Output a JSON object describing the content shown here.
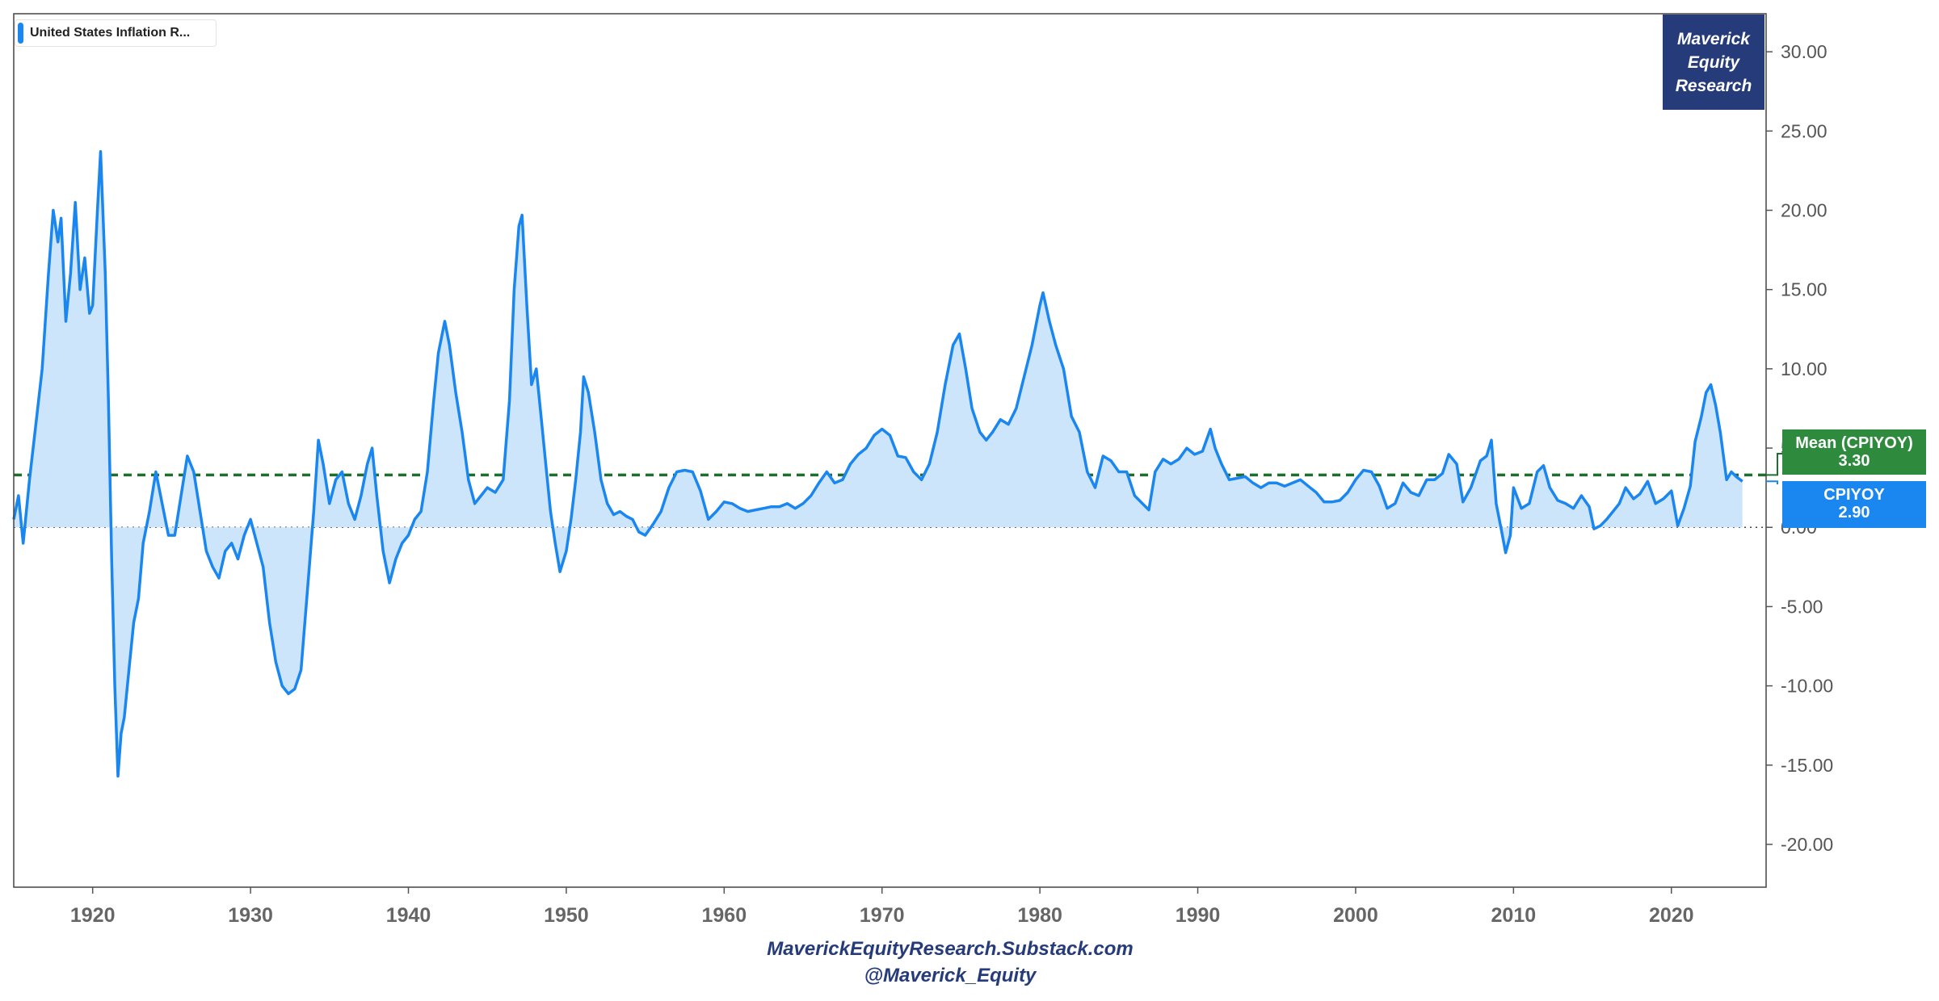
{
  "legend": {
    "label": "United States Inflation R..."
  },
  "brand": {
    "line1": "Maverick",
    "line2": "Equity",
    "line3": "Research"
  },
  "tags": {
    "mean_label": "Mean (CPIYOY)",
    "mean_value": "3.30",
    "current_label": "CPIYOY",
    "current_value": "2.90"
  },
  "footer": {
    "line1": "MaverickEquityResearch.Substack.com",
    "line2": "@Maverick_Equity"
  },
  "colors": {
    "line": "#1a86f0",
    "fill": "#cde5fb",
    "mean_line": "#1f6e2e",
    "brand": "#253b7a"
  },
  "chart_data": {
    "type": "area",
    "title": "United States Inflation R...",
    "xlabel": "",
    "ylabel": "",
    "xlim": [
      1915,
      2026
    ],
    "ylim": [
      -22.7,
      32.4
    ],
    "x_ticks": [
      "1920",
      "1930",
      "1940",
      "1950",
      "1960",
      "1970",
      "1980",
      "1990",
      "2000",
      "2010",
      "2020"
    ],
    "y_ticks": [
      "30.00",
      "25.00",
      "20.00",
      "15.00",
      "10.00",
      "5.00",
      "0.00",
      "-5.00",
      "-10.00",
      "-15.00",
      "-20.00"
    ],
    "mean": 3.3,
    "last_value": 2.9,
    "series": [
      {
        "points": [
          [
            1915.0,
            0.5
          ],
          [
            1915.3,
            2.0
          ],
          [
            1915.6,
            -1.0
          ],
          [
            1916.0,
            3.0
          ],
          [
            1916.4,
            6.5
          ],
          [
            1916.8,
            10.0
          ],
          [
            1917.2,
            16.0
          ],
          [
            1917.5,
            20.0
          ],
          [
            1917.8,
            18.0
          ],
          [
            1918.0,
            19.5
          ],
          [
            1918.3,
            13.0
          ],
          [
            1918.6,
            16.0
          ],
          [
            1918.9,
            20.5
          ],
          [
            1919.2,
            15.0
          ],
          [
            1919.5,
            17.0
          ],
          [
            1919.8,
            13.5
          ],
          [
            1920.0,
            14.0
          ],
          [
            1920.3,
            20.0
          ],
          [
            1920.5,
            23.7
          ],
          [
            1920.8,
            16.0
          ],
          [
            1921.0,
            8.0
          ],
          [
            1921.2,
            -2.0
          ],
          [
            1921.4,
            -10.0
          ],
          [
            1921.6,
            -15.7
          ],
          [
            1921.8,
            -13.0
          ],
          [
            1922.0,
            -12.0
          ],
          [
            1922.3,
            -9.0
          ],
          [
            1922.6,
            -6.0
          ],
          [
            1922.9,
            -4.5
          ],
          [
            1923.2,
            -1.0
          ],
          [
            1923.6,
            1.0
          ],
          [
            1924.0,
            3.5
          ],
          [
            1924.4,
            1.5
          ],
          [
            1924.8,
            -0.5
          ],
          [
            1925.2,
            -0.5
          ],
          [
            1925.6,
            2.0
          ],
          [
            1926.0,
            4.5
          ],
          [
            1926.4,
            3.5
          ],
          [
            1926.8,
            1.0
          ],
          [
            1927.2,
            -1.5
          ],
          [
            1927.6,
            -2.5
          ],
          [
            1928.0,
            -3.2
          ],
          [
            1928.4,
            -1.5
          ],
          [
            1928.8,
            -1.0
          ],
          [
            1929.2,
            -2.0
          ],
          [
            1929.6,
            -0.5
          ],
          [
            1930.0,
            0.5
          ],
          [
            1930.4,
            -1.0
          ],
          [
            1930.8,
            -2.5
          ],
          [
            1931.2,
            -6.0
          ],
          [
            1931.6,
            -8.5
          ],
          [
            1932.0,
            -10.0
          ],
          [
            1932.4,
            -10.5
          ],
          [
            1932.8,
            -10.2
          ],
          [
            1933.2,
            -9.0
          ],
          [
            1933.6,
            -4.0
          ],
          [
            1934.0,
            1.0
          ],
          [
            1934.3,
            5.5
          ],
          [
            1934.6,
            4.0
          ],
          [
            1935.0,
            1.5
          ],
          [
            1935.4,
            3.0
          ],
          [
            1935.8,
            3.5
          ],
          [
            1936.2,
            1.5
          ],
          [
            1936.6,
            0.5
          ],
          [
            1937.0,
            2.0
          ],
          [
            1937.4,
            4.0
          ],
          [
            1937.7,
            5.0
          ],
          [
            1938.0,
            2.0
          ],
          [
            1938.4,
            -1.5
          ],
          [
            1938.8,
            -3.5
          ],
          [
            1939.2,
            -2.0
          ],
          [
            1939.6,
            -1.0
          ],
          [
            1940.0,
            -0.5
          ],
          [
            1940.4,
            0.5
          ],
          [
            1940.8,
            1.0
          ],
          [
            1941.2,
            3.5
          ],
          [
            1941.6,
            8.0
          ],
          [
            1941.9,
            11.0
          ],
          [
            1942.3,
            13.0
          ],
          [
            1942.6,
            11.5
          ],
          [
            1943.0,
            8.5
          ],
          [
            1943.4,
            6.0
          ],
          [
            1943.8,
            3.0
          ],
          [
            1944.2,
            1.5
          ],
          [
            1944.6,
            2.0
          ],
          [
            1945.0,
            2.5
          ],
          [
            1945.5,
            2.2
          ],
          [
            1946.0,
            3.0
          ],
          [
            1946.4,
            8.0
          ],
          [
            1946.7,
            15.0
          ],
          [
            1947.0,
            19.0
          ],
          [
            1947.2,
            19.7
          ],
          [
            1947.5,
            14.0
          ],
          [
            1947.8,
            9.0
          ],
          [
            1948.1,
            10.0
          ],
          [
            1948.4,
            7.0
          ],
          [
            1948.7,
            4.0
          ],
          [
            1949.0,
            1.0
          ],
          [
            1949.3,
            -1.0
          ],
          [
            1949.6,
            -2.8
          ],
          [
            1950.0,
            -1.5
          ],
          [
            1950.3,
            0.5
          ],
          [
            1950.6,
            3.0
          ],
          [
            1950.9,
            6.0
          ],
          [
            1951.1,
            9.5
          ],
          [
            1951.4,
            8.5
          ],
          [
            1951.8,
            6.0
          ],
          [
            1952.2,
            3.0
          ],
          [
            1952.6,
            1.5
          ],
          [
            1953.0,
            0.8
          ],
          [
            1953.4,
            1.0
          ],
          [
            1953.8,
            0.7
          ],
          [
            1954.2,
            0.5
          ],
          [
            1954.6,
            -0.3
          ],
          [
            1955.0,
            -0.5
          ],
          [
            1955.5,
            0.2
          ],
          [
            1956.0,
            1.0
          ],
          [
            1956.5,
            2.5
          ],
          [
            1957.0,
            3.5
          ],
          [
            1957.5,
            3.6
          ],
          [
            1958.0,
            3.5
          ],
          [
            1958.5,
            2.3
          ],
          [
            1959.0,
            0.5
          ],
          [
            1959.5,
            1.0
          ],
          [
            1960.0,
            1.6
          ],
          [
            1960.5,
            1.5
          ],
          [
            1961.0,
            1.2
          ],
          [
            1961.5,
            1.0
          ],
          [
            1962.0,
            1.1
          ],
          [
            1962.5,
            1.2
          ],
          [
            1963.0,
            1.3
          ],
          [
            1963.5,
            1.3
          ],
          [
            1964.0,
            1.5
          ],
          [
            1964.5,
            1.2
          ],
          [
            1965.0,
            1.5
          ],
          [
            1965.5,
            2.0
          ],
          [
            1966.0,
            2.8
          ],
          [
            1966.5,
            3.5
          ],
          [
            1967.0,
            2.8
          ],
          [
            1967.5,
            3.0
          ],
          [
            1968.0,
            4.0
          ],
          [
            1968.5,
            4.6
          ],
          [
            1969.0,
            5.0
          ],
          [
            1969.5,
            5.8
          ],
          [
            1970.0,
            6.2
          ],
          [
            1970.5,
            5.8
          ],
          [
            1971.0,
            4.5
          ],
          [
            1971.5,
            4.4
          ],
          [
            1972.0,
            3.5
          ],
          [
            1972.5,
            3.0
          ],
          [
            1973.0,
            4.0
          ],
          [
            1973.5,
            6.0
          ],
          [
            1974.0,
            9.0
          ],
          [
            1974.5,
            11.5
          ],
          [
            1974.9,
            12.2
          ],
          [
            1975.3,
            10.0
          ],
          [
            1975.7,
            7.5
          ],
          [
            1976.2,
            6.0
          ],
          [
            1976.6,
            5.5
          ],
          [
            1977.0,
            6.0
          ],
          [
            1977.5,
            6.8
          ],
          [
            1978.0,
            6.5
          ],
          [
            1978.5,
            7.5
          ],
          [
            1979.0,
            9.5
          ],
          [
            1979.5,
            11.5
          ],
          [
            1980.0,
            14.0
          ],
          [
            1980.2,
            14.8
          ],
          [
            1980.6,
            13.0
          ],
          [
            1981.0,
            11.5
          ],
          [
            1981.5,
            10.0
          ],
          [
            1982.0,
            7.0
          ],
          [
            1982.5,
            6.0
          ],
          [
            1983.0,
            3.5
          ],
          [
            1983.5,
            2.5
          ],
          [
            1984.0,
            4.5
          ],
          [
            1984.5,
            4.2
          ],
          [
            1985.0,
            3.5
          ],
          [
            1985.5,
            3.5
          ],
          [
            1986.0,
            2.0
          ],
          [
            1986.5,
            1.5
          ],
          [
            1986.9,
            1.1
          ],
          [
            1987.3,
            3.5
          ],
          [
            1987.8,
            4.3
          ],
          [
            1988.3,
            4.0
          ],
          [
            1988.8,
            4.3
          ],
          [
            1989.3,
            5.0
          ],
          [
            1989.8,
            4.6
          ],
          [
            1990.3,
            4.8
          ],
          [
            1990.8,
            6.2
          ],
          [
            1991.1,
            5.0
          ],
          [
            1991.5,
            4.0
          ],
          [
            1992.0,
            3.0
          ],
          [
            1992.5,
            3.1
          ],
          [
            1993.0,
            3.2
          ],
          [
            1993.5,
            2.8
          ],
          [
            1994.0,
            2.5
          ],
          [
            1994.5,
            2.8
          ],
          [
            1995.0,
            2.8
          ],
          [
            1995.5,
            2.6
          ],
          [
            1996.0,
            2.8
          ],
          [
            1996.5,
            3.0
          ],
          [
            1997.0,
            2.6
          ],
          [
            1997.5,
            2.2
          ],
          [
            1998.0,
            1.6
          ],
          [
            1998.5,
            1.6
          ],
          [
            1999.0,
            1.7
          ],
          [
            1999.5,
            2.2
          ],
          [
            2000.0,
            3.0
          ],
          [
            2000.5,
            3.6
          ],
          [
            2001.0,
            3.5
          ],
          [
            2001.5,
            2.6
          ],
          [
            2002.0,
            1.2
          ],
          [
            2002.5,
            1.5
          ],
          [
            2003.0,
            2.8
          ],
          [
            2003.5,
            2.2
          ],
          [
            2004.0,
            2.0
          ],
          [
            2004.5,
            3.0
          ],
          [
            2005.0,
            3.0
          ],
          [
            2005.5,
            3.4
          ],
          [
            2005.9,
            4.6
          ],
          [
            2006.4,
            4.0
          ],
          [
            2006.8,
            1.6
          ],
          [
            2007.3,
            2.5
          ],
          [
            2007.9,
            4.2
          ],
          [
            2008.3,
            4.5
          ],
          [
            2008.6,
            5.5
          ],
          [
            2008.9,
            1.5
          ],
          [
            2009.2,
            0.0
          ],
          [
            2009.5,
            -1.6
          ],
          [
            2009.8,
            -0.5
          ],
          [
            2010.0,
            2.5
          ],
          [
            2010.5,
            1.2
          ],
          [
            2011.0,
            1.5
          ],
          [
            2011.5,
            3.5
          ],
          [
            2011.9,
            3.9
          ],
          [
            2012.3,
            2.5
          ],
          [
            2012.8,
            1.7
          ],
          [
            2013.3,
            1.5
          ],
          [
            2013.8,
            1.2
          ],
          [
            2014.3,
            2.0
          ],
          [
            2014.8,
            1.3
          ],
          [
            2015.1,
            -0.1
          ],
          [
            2015.5,
            0.1
          ],
          [
            2015.9,
            0.5
          ],
          [
            2016.3,
            1.0
          ],
          [
            2016.7,
            1.5
          ],
          [
            2017.1,
            2.5
          ],
          [
            2017.6,
            1.8
          ],
          [
            2018.0,
            2.1
          ],
          [
            2018.5,
            2.9
          ],
          [
            2019.0,
            1.5
          ],
          [
            2019.5,
            1.8
          ],
          [
            2020.0,
            2.3
          ],
          [
            2020.4,
            0.1
          ],
          [
            2020.8,
            1.2
          ],
          [
            2021.2,
            2.6
          ],
          [
            2021.5,
            5.4
          ],
          [
            2021.9,
            7.0
          ],
          [
            2022.2,
            8.5
          ],
          [
            2022.5,
            9.0
          ],
          [
            2022.8,
            7.7
          ],
          [
            2023.1,
            6.0
          ],
          [
            2023.5,
            3.0
          ],
          [
            2023.8,
            3.5
          ],
          [
            2024.1,
            3.2
          ],
          [
            2024.5,
            2.9
          ]
        ]
      }
    ]
  }
}
